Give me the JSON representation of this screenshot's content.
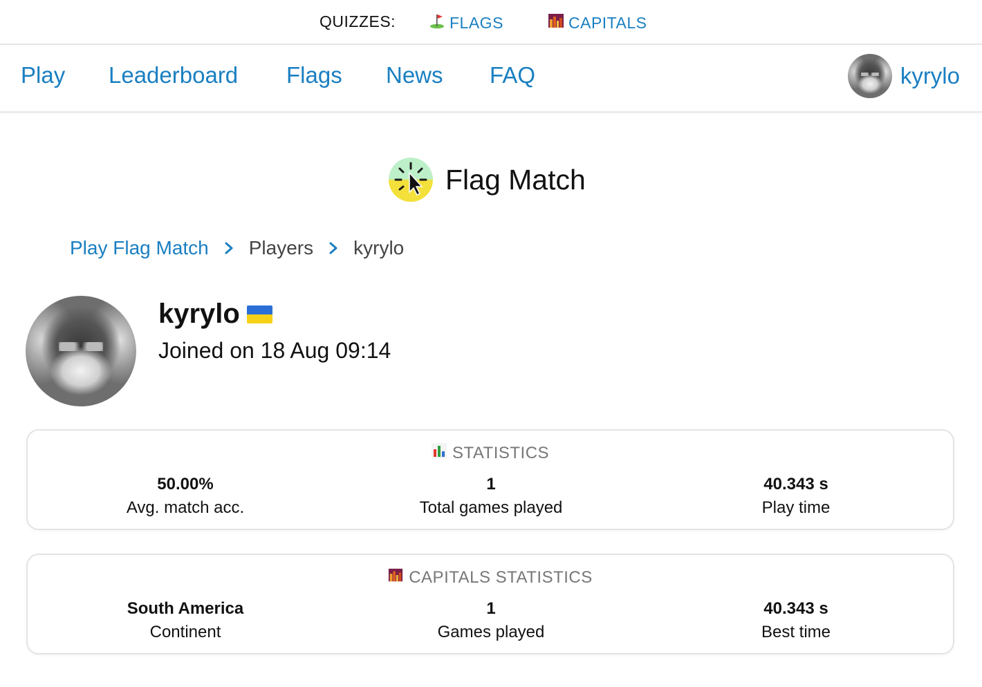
{
  "quizbar": {
    "label": "QUIZZES:",
    "links": [
      {
        "label": "FLAGS",
        "icon": "golf-flag-icon"
      },
      {
        "label": "CAPITALS",
        "icon": "city-icon"
      }
    ]
  },
  "nav": {
    "items": [
      {
        "label": "Play"
      },
      {
        "label": "Leaderboard"
      },
      {
        "label": "Flags"
      },
      {
        "label": "News"
      },
      {
        "label": "FAQ"
      }
    ],
    "user": {
      "name": "kyrylo",
      "avatar": "wolf-avatar"
    }
  },
  "header": {
    "title": "Flag Match",
    "logo": "flag-match-logo-icon"
  },
  "breadcrumb": [
    {
      "label": "Play Flag Match"
    },
    {
      "label": "Players"
    },
    {
      "label": "kyrylo"
    }
  ],
  "profile": {
    "name": "kyrylo",
    "country_flag": "ukraine-flag-icon",
    "joined": "Joined on 18 Aug 09:14"
  },
  "statistics": {
    "title": "STATISTICS",
    "icon": "bar-chart-icon",
    "items": [
      {
        "value": "50.00%",
        "label": "Avg. match acc."
      },
      {
        "value": "1",
        "label": "Total games played"
      },
      {
        "value": "40.343 s",
        "label": "Play time"
      }
    ]
  },
  "capitals_statistics": {
    "title": "CAPITALS STATISTICS",
    "icon": "city-icon",
    "items": [
      {
        "value": "South America",
        "label": "Continent"
      },
      {
        "value": "1",
        "label": "Games played"
      },
      {
        "value": "40.343 s",
        "label": "Best time"
      }
    ]
  },
  "colors": {
    "link": "#1a7fc1",
    "border": "#e3e3e3",
    "muted": "#777777"
  }
}
